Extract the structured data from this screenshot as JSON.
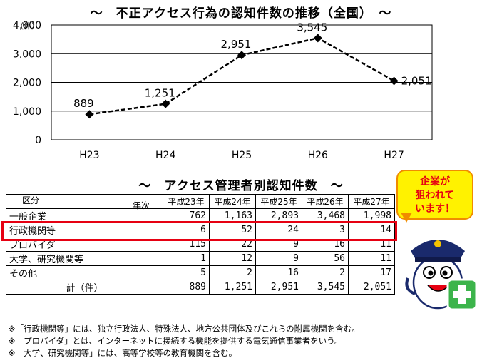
{
  "chart_data": {
    "type": "line",
    "title": "～　不正アクセス行為の認知件数の推移（全国）　～",
    "ylabel": "（件）",
    "x": [
      "H23",
      "H24",
      "H25",
      "H26",
      "H27"
    ],
    "values": [
      889,
      1251,
      2951,
      3545,
      2051
    ],
    "data_labels": [
      "889",
      "1,251",
      "2,951",
      "3,545",
      "2,051"
    ],
    "yticks": [
      "0",
      "1,000",
      "2,000",
      "3,000",
      "4,000"
    ],
    "ylim": [
      0,
      4000
    ],
    "grid": true,
    "line_style": "dashed with diamond markers"
  },
  "table": {
    "title": "～　アクセス管理者別認知件数　～",
    "corner_year": "年次",
    "corner_kubun": "区分",
    "columns": [
      "平成23年",
      "平成24年",
      "平成25年",
      "平成26年",
      "平成27年"
    ],
    "rows": [
      {
        "label": "一般企業",
        "values": [
          "762",
          "1,163",
          "2,893",
          "3,468",
          "1,998"
        ]
      },
      {
        "label": "行政機関等",
        "values": [
          "6",
          "52",
          "24",
          "3",
          "14"
        ]
      },
      {
        "label": "プロバイダ",
        "values": [
          "115",
          "22",
          "9",
          "16",
          "11"
        ]
      },
      {
        "label": "大学、研究機関等",
        "values": [
          "1",
          "12",
          "9",
          "56",
          "11"
        ]
      },
      {
        "label": "その他",
        "values": [
          "5",
          "2",
          "16",
          "2",
          "17"
        ]
      }
    ],
    "total": {
      "label": "計（件）",
      "values": [
        "889",
        "1,251",
        "2,951",
        "3,545",
        "2,051"
      ]
    }
  },
  "callout": {
    "line1": "企業が",
    "line2": "狙われて",
    "line3": "います！"
  },
  "notes": [
    "※「行政機関等」には、独立行政法人、特殊法人、地方公共団体及びこれらの附属機関を含む。",
    "※「プロバイダ」とは、インターネットに接続する機能を提供する電気通信事業者をいう。",
    "※「大学、研究機関等」には、高等学校等の教育機関を含む。"
  ],
  "colors": {
    "highlight": "#e60012",
    "bubble_fill": "#fff200",
    "bubble_border": "#f08c00",
    "badge": "#3cb44b"
  }
}
